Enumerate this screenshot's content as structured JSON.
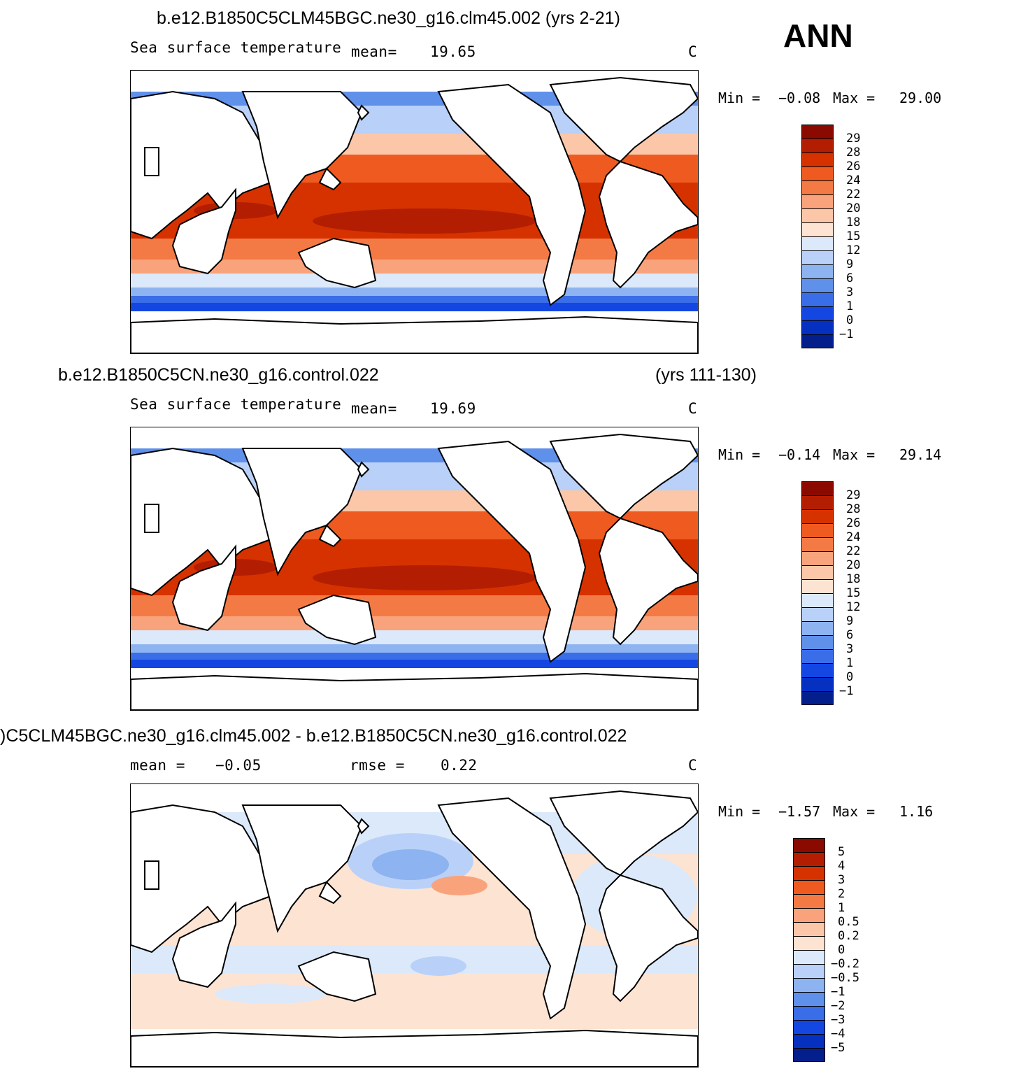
{
  "season_label": "ANN",
  "panels": [
    {
      "title": "b.e12.B1850C5CLM45BGC.ne30_g16.clm45.002 (yrs 2-21)",
      "title_right": "",
      "variable": "Sea surface temperature",
      "stat1_label": "mean=",
      "stat1_value": "19.65",
      "stat2_label": "",
      "stat2_value": "",
      "units": "C",
      "min_label": "Min =",
      "min_value": "-0.08",
      "max_label": "Max =",
      "max_value": "29.00",
      "colorbar": {
        "colors": [
          "#8b0a00",
          "#b31e02",
          "#d63200",
          "#ef5a20",
          "#f47a45",
          "#f9a37c",
          "#fbc7a8",
          "#fde3d2",
          "#dbe9fb",
          "#b9d1f8",
          "#8db3f1",
          "#5f90ea",
          "#3a6de8",
          "#1446e2",
          "#0530c0",
          "#041e8c"
        ],
        "labels": [
          "29",
          "28",
          "26",
          "24",
          "22",
          "20",
          "18",
          "15",
          "12",
          "9",
          "6",
          "3",
          "1",
          "0",
          "-1"
        ]
      }
    },
    {
      "title": "b.e12.B1850C5CN.ne30_g16.control.022",
      "title_right": "(yrs 111-130)",
      "variable": "Sea surface temperature",
      "stat1_label": "mean=",
      "stat1_value": "19.69",
      "stat2_label": "",
      "stat2_value": "",
      "units": "C",
      "min_label": "Min =",
      "min_value": "-0.14",
      "max_label": "Max =",
      "max_value": "29.14",
      "colorbar": {
        "colors": [
          "#8b0a00",
          "#b31e02",
          "#d63200",
          "#ef5a20",
          "#f47a45",
          "#f9a37c",
          "#fbc7a8",
          "#fde3d2",
          "#dbe9fb",
          "#b9d1f8",
          "#8db3f1",
          "#5f90ea",
          "#3a6de8",
          "#1446e2",
          "#0530c0",
          "#041e8c"
        ],
        "labels": [
          "29",
          "28",
          "26",
          "24",
          "22",
          "20",
          "18",
          "15",
          "12",
          "9",
          "6",
          "3",
          "1",
          "0",
          "-1"
        ]
      }
    },
    {
      "title": ")C5CLM45BGC.ne30_g16.clm45.002 - b.e12.B1850C5CN.ne30_g16.control.022",
      "title_right": "",
      "variable": "",
      "stat1_label": "mean =",
      "stat1_value": "-0.05",
      "stat2_label": "rmse =",
      "stat2_value": "0.22",
      "units": "C",
      "min_label": "Min =",
      "min_value": "-1.57",
      "max_label": "Max =",
      "max_value": "1.16",
      "colorbar": {
        "colors": [
          "#8b0a00",
          "#b31e02",
          "#d63200",
          "#ef5a20",
          "#f47a45",
          "#f9a37c",
          "#fbc7a8",
          "#fde3d2",
          "#dbe9fb",
          "#b9d1f8",
          "#8db3f1",
          "#5f90ea",
          "#3a6de8",
          "#1446e2",
          "#0530c0",
          "#041e8c"
        ],
        "labels": [
          "5",
          "4",
          "3",
          "2",
          "1",
          "0.5",
          "0.2",
          "0",
          "-0.2",
          "-0.5",
          "-1",
          "-2",
          "-3",
          "-4",
          "-5"
        ]
      }
    }
  ]
}
